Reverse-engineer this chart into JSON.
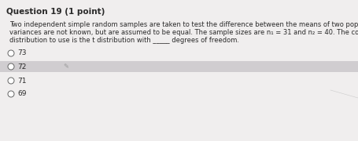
{
  "title": "Question 19 (1 point)",
  "body_lines": [
    "Two independent simple random samples are taken to test the difference between the means of two populations whose",
    "variances are not known, but are assumed to be equal. The sample sizes are n₁ = 31 and n₂ = 40. The correct",
    "distribution to use is the t distribution with _____ degrees of freedom."
  ],
  "options": [
    "73",
    "72",
    "71",
    "69"
  ],
  "selected_option_index": 1,
  "bg_color": "#e8e8e8",
  "page_bg": "#f0eeee",
  "option_highlight_color": "#d0cdd0",
  "title_fontsize": 7.5,
  "body_fontsize": 6.0,
  "option_fontsize": 6.5,
  "text_color": "#2a2a2a",
  "radio_color": "#666666",
  "icon_color": "#999999"
}
